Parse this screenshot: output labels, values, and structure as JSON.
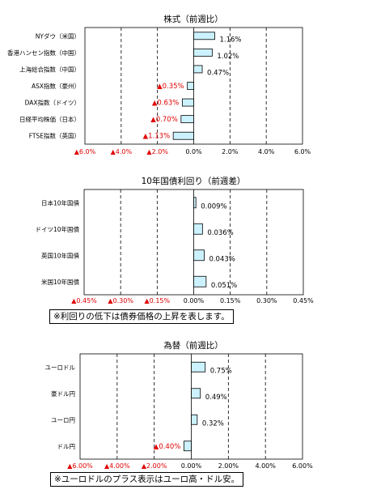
{
  "charts": [
    {
      "type": "bar",
      "orientation": "horizontal",
      "title": "株式（前週比）",
      "categories": [
        "NYダウ（米国）",
        "香港ハンセン指数（中国）",
        "上海総合指数（中国）",
        "ASX指数（豪州）",
        "DAX指数（ドイツ）",
        "日経平均株価（日本）",
        "FTSE指数（英国）"
      ],
      "values": [
        1.16,
        1.02,
        0.47,
        -0.35,
        -0.63,
        -0.7,
        -1.13
      ],
      "value_labels": [
        "1.16%",
        "1.02%",
        "0.47%",
        "▲0.35%",
        "▲0.63%",
        "▲0.70%",
        "▲1.13%"
      ],
      "xlim": [
        -6,
        6
      ],
      "ticks": [
        -6,
        -4,
        -2,
        0,
        2,
        4,
        6
      ],
      "tick_labels": [
        "▲6.0%",
        "▲4.0%",
        "▲2.0%",
        "0.0%",
        "2.0%",
        "4.0%",
        "6.0%"
      ],
      "grid": "dashed-vertical",
      "note": ""
    },
    {
      "type": "bar",
      "orientation": "horizontal",
      "title": "10年国債利回り（前週差）",
      "categories": [
        "日本10年国債",
        "ドイツ10年国債",
        "英国10年国債",
        "米国10年国債"
      ],
      "values": [
        0.009,
        0.036,
        0.043,
        0.051
      ],
      "value_labels": [
        "0.009%",
        "0.036%",
        "0.043%",
        "0.051%"
      ],
      "xlim": [
        -0.45,
        0.45
      ],
      "ticks": [
        -0.45,
        -0.3,
        -0.15,
        0,
        0.15,
        0.3,
        0.45
      ],
      "tick_labels": [
        "▲0.45%",
        "▲0.30%",
        "▲0.15%",
        "0.00%",
        "0.15%",
        "0.30%",
        "0.45%"
      ],
      "grid": "dashed-vertical",
      "note": "※利回りの低下は債券価格の上昇を表します。"
    },
    {
      "type": "bar",
      "orientation": "horizontal",
      "title": "為替（前週比）",
      "categories": [
        "ユーロドル",
        "豪ドル円",
        "ユーロ円",
        "ドル円"
      ],
      "values": [
        0.75,
        0.49,
        0.32,
        -0.4
      ],
      "value_labels": [
        "0.75%",
        "0.49%",
        "0.32%",
        "▲0.40%"
      ],
      "xlim": [
        -6,
        6
      ],
      "ticks": [
        -6,
        -4,
        -2,
        0,
        2,
        4,
        6
      ],
      "tick_labels": [
        "▲6.00%",
        "▲4.00%",
        "▲2.00%",
        "0.00%",
        "2.00%",
        "4.00%",
        "6.00%"
      ],
      "grid": "dashed-vertical",
      "note": "※ユーロドルのプラス表示はユーロ高・ドル安。"
    }
  ],
  "colors": {
    "bar_fill": "#ccf2ff",
    "bar_stroke": "#000000",
    "negative_text": "#e00000",
    "positive_text": "#000000"
  }
}
